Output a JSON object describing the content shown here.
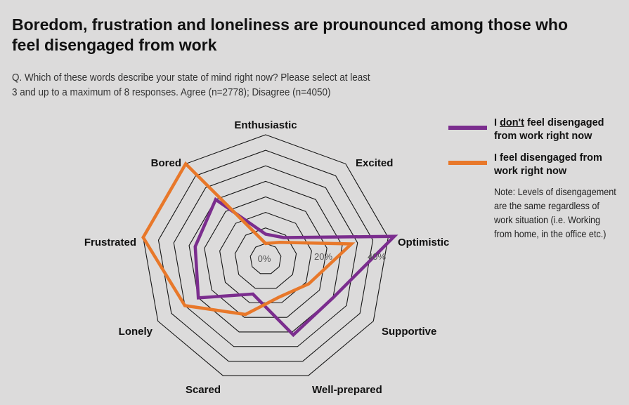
{
  "title": "Boredom, frustration and loneliness are prounounced among those who feel disengaged from work",
  "question": "Q. Which of these words describe your state of mind right now? Please select at least 3 and up to a maximum of 8 responses.  Agree (n=2778); Disagree (n=4050)",
  "note": "Note: Levels of disengagement are the same regardless of work situation (i.e. Working from home, in the office etc.)",
  "legend": [
    {
      "pre": "I ",
      "underlined": "don't",
      "post": " feel disengaged from work right now",
      "color": "#7b2d8e"
    },
    {
      "pre": "I feel disengaged from work right now",
      "underlined": "",
      "post": "",
      "color": "#e8782a"
    }
  ],
  "chart_data": {
    "type": "radar",
    "axes": [
      "Enthusiastic",
      "Excited",
      "Optimistic",
      "Supportive",
      "Well-prepared",
      "Scared",
      "Lonely",
      "Frustrated",
      "Bored"
    ],
    "tick_labels": [
      "0%",
      "20%",
      "40%"
    ],
    "range": [
      0,
      40
    ],
    "grid_step": 5,
    "series": [
      {
        "name": "I don't feel disengaged from work right now",
        "color": "#7b2d8e",
        "values": [
          8,
          9,
          42,
          25,
          26,
          12,
          25,
          23,
          25
        ]
      },
      {
        "name": "I feel disengaged from work right now",
        "color": "#e8782a",
        "values": [
          5,
          7,
          28,
          16,
          13,
          19,
          30,
          40,
          40
        ]
      }
    ]
  }
}
